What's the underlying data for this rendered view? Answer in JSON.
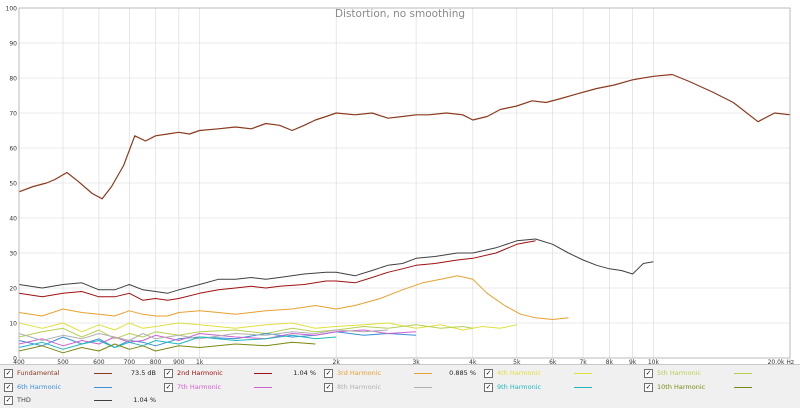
{
  "chart_data": {
    "type": "line",
    "title": "Distortion, no smoothing",
    "xscale": "log",
    "xlim": [
      400,
      20000
    ],
    "ylim": [
      0,
      100
    ],
    "xunit": "Hz",
    "grid": true,
    "legend_position": "bottom",
    "x_ticks": [
      {
        "value": 400,
        "label": "400"
      },
      {
        "value": 500,
        "label": "500"
      },
      {
        "value": 600,
        "label": "600"
      },
      {
        "value": 700,
        "label": "700"
      },
      {
        "value": 800,
        "label": "800"
      },
      {
        "value": 900,
        "label": "900"
      },
      {
        "value": 1000,
        "label": "1k"
      },
      {
        "value": 2000,
        "label": "2k"
      },
      {
        "value": 3000,
        "label": "3k"
      },
      {
        "value": 4000,
        "label": "4k"
      },
      {
        "value": 5000,
        "label": "5k"
      },
      {
        "value": 6000,
        "label": "6k"
      },
      {
        "value": 7000,
        "label": "7k"
      },
      {
        "value": 8000,
        "label": "8k"
      },
      {
        "value": 9000,
        "label": "9k"
      },
      {
        "value": 10000,
        "label": "10k"
      },
      {
        "value": 20000,
        "label": "20.0k Hz"
      }
    ],
    "y_ticks": [
      0,
      10,
      20,
      30,
      40,
      50,
      60,
      70,
      80,
      90,
      100
    ],
    "series": [
      {
        "name": "Fundamental",
        "color": "#8b3a1e",
        "value": "73.5 dB",
        "x": [
          400,
          430,
          460,
          480,
          510,
          540,
          580,
          610,
          640,
          680,
          720,
          760,
          800,
          850,
          900,
          950,
          1000,
          1100,
          1200,
          1300,
          1400,
          1500,
          1600,
          1700,
          1800,
          1900,
          2000,
          2200,
          2400,
          2600,
          2800,
          3000,
          3200,
          3500,
          3800,
          4000,
          4300,
          4600,
          5000,
          5400,
          5800,
          6200,
          6800,
          7500,
          8200,
          9000,
          10000,
          11000,
          12000,
          13500,
          15000,
          17000,
          18500,
          20000
        ],
        "y": [
          47.5,
          49,
          50,
          51,
          53,
          50.5,
          47,
          45.5,
          49,
          55,
          63.5,
          62,
          63.5,
          64,
          64.5,
          64,
          65,
          65.5,
          66,
          65.5,
          67,
          66.5,
          65,
          66.5,
          68,
          69,
          70,
          69.5,
          70,
          68.5,
          69,
          69.5,
          69.5,
          70,
          69.5,
          68,
          69,
          71,
          72,
          73.5,
          73,
          74,
          75.5,
          77,
          78,
          79.5,
          80.5,
          81,
          79,
          76,
          73,
          67.5,
          70,
          69.5
        ]
      },
      {
        "name": "2nd Harmonic",
        "color": "#a01010",
        "value": "1.04 %",
        "x": [
          400,
          450,
          500,
          550,
          600,
          650,
          700,
          750,
          800,
          850,
          900,
          1000,
          1100,
          1200,
          1300,
          1400,
          1500,
          1700,
          1900,
          2000,
          2200,
          2400,
          2600,
          2800,
          3000,
          3300,
          3700,
          4000,
          4500,
          5000,
          5500
        ],
        "y": [
          18.5,
          17.5,
          18.5,
          19,
          17.5,
          17.5,
          18.5,
          16.5,
          17,
          16.5,
          17,
          18.5,
          19.5,
          20,
          20.5,
          20,
          20.5,
          21,
          22,
          22,
          21.5,
          23,
          24.5,
          25.5,
          26.5,
          27,
          28,
          28.5,
          30,
          32.5,
          33.5
        ]
      },
      {
        "name": "3rd Harmonic",
        "color": "#e8a030",
        "value": "0.885 %",
        "x": [
          400,
          450,
          500,
          550,
          600,
          650,
          700,
          750,
          800,
          850,
          900,
          1000,
          1100,
          1200,
          1400,
          1600,
          1800,
          2000,
          2200,
          2500,
          2800,
          3100,
          3400,
          3700,
          4000,
          4300,
          4700,
          5100,
          5500,
          6000,
          6500
        ],
        "y": [
          13,
          12,
          14,
          13,
          12.5,
          12,
          13.5,
          12.5,
          12,
          12,
          13,
          13.5,
          13,
          12.5,
          13.5,
          14,
          15,
          14,
          15,
          17,
          19.5,
          21.5,
          22.5,
          23.5,
          22.5,
          18.5,
          15,
          12.5,
          11.5,
          11,
          11.5
        ]
      },
      {
        "name": "4th Harmonic",
        "color": "#e0e040",
        "value": "",
        "x": [
          400,
          450,
          500,
          550,
          600,
          650,
          700,
          750,
          800,
          900,
          1000,
          1200,
          1400,
          1600,
          1800,
          2000,
          2300,
          2600,
          3000,
          3400,
          3800,
          4200,
          4600,
          5000
        ],
        "y": [
          10,
          8.5,
          10,
          7.5,
          9.5,
          8,
          10,
          8.5,
          9,
          10,
          9.5,
          8.5,
          9.5,
          10,
          8.5,
          9,
          9.5,
          10,
          8.5,
          9.5,
          8,
          9,
          8.5,
          9.5
        ]
      },
      {
        "name": "5th Harmonic",
        "color": "#b8d050",
        "value": "",
        "x": [
          400,
          450,
          500,
          550,
          600,
          650,
          700,
          750,
          800,
          900,
          1000,
          1200,
          1400,
          1600,
          1800,
          2000,
          2300,
          2600,
          3000,
          3400,
          3800,
          4000
        ],
        "y": [
          6,
          7.5,
          8.5,
          6,
          8,
          5.5,
          7,
          6,
          7.5,
          6.5,
          7.5,
          8,
          7,
          8.5,
          7.5,
          8,
          9,
          8.5,
          9.5,
          8.5,
          9,
          8.5
        ]
      },
      {
        "name": "6th Harmonic",
        "color": "#3a8fd8",
        "value": "",
        "x": [
          400,
          450,
          500,
          550,
          600,
          650,
          700,
          750,
          800,
          900,
          1000,
          1200,
          1400,
          1600,
          1800,
          2000,
          2300,
          2600,
          3000
        ],
        "y": [
          5,
          3.5,
          6,
          4,
          5.5,
          3,
          5,
          4.5,
          3.5,
          5.5,
          6,
          5.5,
          7,
          6,
          6.5,
          7.5,
          6.5,
          7,
          6.5
        ]
      },
      {
        "name": "7th Harmonic",
        "color": "#d060d0",
        "value": "",
        "x": [
          400,
          450,
          500,
          550,
          600,
          650,
          700,
          750,
          800,
          900,
          1000,
          1200,
          1400,
          1600,
          1800,
          2000,
          2300,
          2600,
          3000
        ],
        "y": [
          4,
          5.5,
          3.5,
          5,
          4,
          6,
          4.5,
          5,
          6.5,
          5,
          7,
          6,
          5.5,
          7,
          6.5,
          7.5,
          8,
          7,
          7.5
        ]
      },
      {
        "name": "8th Harmonic",
        "color": "#b0b0b0",
        "value": "",
        "x": [
          400,
          450,
          500,
          550,
          600,
          650,
          700,
          750,
          800,
          900,
          1000,
          1200,
          1400,
          1600,
          1800,
          2000,
          2300,
          2600
        ],
        "y": [
          7,
          5,
          6.5,
          5.5,
          7,
          6,
          5,
          7,
          5.5,
          6.5,
          5.5,
          7,
          6.5,
          7.5,
          7,
          8,
          7.5,
          8
        ]
      },
      {
        "name": "9th Harmonic",
        "color": "#20b8c0",
        "value": "",
        "x": [
          400,
          450,
          500,
          550,
          600,
          650,
          700,
          750,
          800,
          900,
          1000,
          1200,
          1400,
          1600,
          1800,
          2000
        ],
        "y": [
          3,
          4.5,
          2.5,
          4,
          5,
          3,
          4.5,
          3.5,
          5,
          4,
          6,
          5,
          5.5,
          6.5,
          5.5,
          6
        ]
      },
      {
        "name": "10th Harmonic",
        "color": "#7a8a10",
        "value": "",
        "x": [
          400,
          450,
          500,
          550,
          600,
          650,
          700,
          750,
          800,
          900,
          1000,
          1200,
          1400,
          1600,
          1800
        ],
        "y": [
          2,
          3.5,
          1.5,
          3,
          2,
          4,
          2.5,
          3.5,
          2,
          3.5,
          3,
          4,
          3.5,
          4.5,
          4
        ]
      },
      {
        "name": "THD",
        "color": "#404040",
        "value": "1.04 %",
        "x": [
          400,
          450,
          500,
          550,
          600,
          650,
          700,
          750,
          800,
          850,
          900,
          1000,
          1100,
          1200,
          1300,
          1400,
          1500,
          1700,
          1900,
          2000,
          2200,
          2400,
          2600,
          2800,
          3000,
          3300,
          3700,
          4000,
          4500,
          5000,
          5500,
          6000,
          6500,
          7000,
          7500,
          8000,
          8500,
          9000,
          9500,
          10000
        ],
        "y": [
          21,
          20,
          21,
          21.5,
          19.5,
          19.5,
          21,
          19.5,
          19,
          18.5,
          19.5,
          21,
          22.5,
          22.5,
          23,
          22.5,
          23,
          24,
          24.5,
          24.5,
          23.5,
          25,
          26.5,
          27,
          28.5,
          29,
          30,
          30,
          31.5,
          33.5,
          34,
          32.5,
          30,
          28,
          26.5,
          25.5,
          25,
          24,
          27,
          27.5
        ]
      }
    ]
  }
}
